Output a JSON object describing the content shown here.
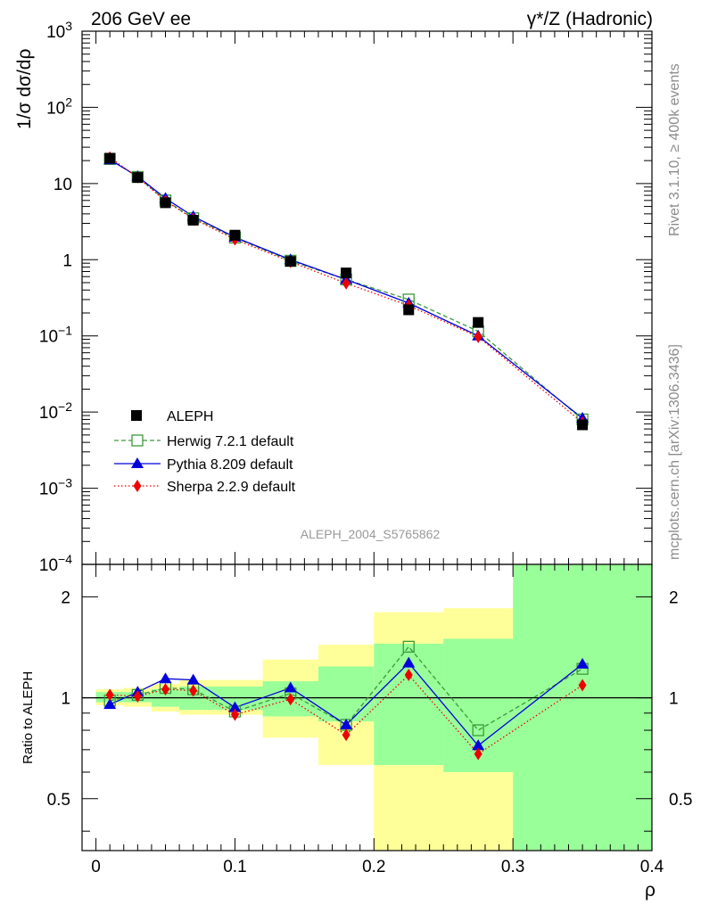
{
  "header": {
    "left": "206 GeV ee",
    "right_main": "γ*/Z (Hadronic)"
  },
  "side_labels": {
    "rivet": "Rivet 3.1.10, ≥ 400k events",
    "mcplots": "mcplots.cern.ch [arXiv:1306.3436]"
  },
  "watermark": "ALEPH_2004_S5765862",
  "chart_data": [
    {
      "type": "line",
      "panel": "main",
      "ylabel": "1/σ  dσ/dρ",
      "xlabel": "",
      "xlim": [
        -0.01,
        0.4
      ],
      "ylim": [
        0.0001,
        1000
      ],
      "yscale": "log",
      "y_tick_labels": [
        "10^-4",
        "10^-3",
        "10^-2",
        "10^-1",
        "1",
        "10",
        "10^2",
        "10^3"
      ],
      "legend_position": "lower-left",
      "x": [
        0.01,
        0.03,
        0.05,
        0.07,
        0.1,
        0.14,
        0.18,
        0.225,
        0.275,
        0.35
      ],
      "series": [
        {
          "name": "ALEPH",
          "color": "#000000",
          "style": "square-filled",
          "values": [
            21.5,
            12.0,
            5.6,
            3.3,
            2.1,
            0.95,
            0.67,
            0.22,
            0.15,
            0.0068
          ]
        },
        {
          "name": "Herwig 7.2.1 default",
          "color": "#3a9a3a",
          "style": "dashed-open-square",
          "values": [
            21.0,
            12.2,
            6.0,
            3.5,
            1.95,
            0.97,
            0.55,
            0.3,
            0.115,
            0.008
          ]
        },
        {
          "name": "Pythia 8.209 default",
          "color": "#0000dd",
          "style": "solid-triangle",
          "values": [
            20.5,
            12.4,
            6.4,
            3.7,
            1.97,
            1.0,
            0.55,
            0.27,
            0.1,
            0.0083
          ]
        },
        {
          "name": "Sherpa 2.2.9 default",
          "color": "#ee0000",
          "style": "dotted-diamond",
          "values": [
            22.0,
            12.1,
            5.9,
            3.45,
            1.85,
            0.94,
            0.49,
            0.25,
            0.097,
            0.0073
          ]
        }
      ]
    },
    {
      "type": "line",
      "panel": "ratio",
      "ylabel": "Ratio to ALEPH",
      "xlabel": "ρ",
      "xlim": [
        -0.01,
        0.4
      ],
      "ylim": [
        0.35,
        2.5
      ],
      "yscale": "log",
      "x_ticks": [
        0,
        0.1,
        0.2,
        0.3,
        0.4
      ],
      "x_tick_labels": [
        "0",
        "0.1",
        "0.2",
        "0.3",
        "0.4"
      ],
      "y_ticks": [
        0.5,
        1,
        2
      ],
      "y_tick_labels": [
        "0.5",
        "1",
        "2"
      ],
      "bins": [
        [
          0.0,
          0.02
        ],
        [
          0.02,
          0.04
        ],
        [
          0.04,
          0.06
        ],
        [
          0.06,
          0.08
        ],
        [
          0.08,
          0.12
        ],
        [
          0.12,
          0.16
        ],
        [
          0.16,
          0.2
        ],
        [
          0.2,
          0.25
        ],
        [
          0.25,
          0.3
        ],
        [
          0.3,
          0.4
        ]
      ],
      "band_green": [
        [
          0.97,
          1.04
        ],
        [
          0.97,
          1.04
        ],
        [
          0.94,
          1.06
        ],
        [
          0.92,
          1.08
        ],
        [
          0.92,
          1.08
        ],
        [
          0.88,
          1.12
        ],
        [
          0.85,
          1.24
        ],
        [
          0.63,
          1.45
        ],
        [
          0.6,
          1.5
        ],
        [
          0.35,
          2.5
        ]
      ],
      "band_yellow": [
        [
          0.95,
          1.06
        ],
        [
          0.94,
          1.07
        ],
        [
          0.91,
          1.1
        ],
        [
          0.89,
          1.13
        ],
        [
          0.89,
          1.13
        ],
        [
          0.76,
          1.3
        ],
        [
          0.63,
          1.44
        ],
        [
          0.35,
          1.8
        ],
        [
          0.35,
          1.85
        ],
        [
          0.35,
          2.5
        ]
      ],
      "x": [
        0.01,
        0.03,
        0.05,
        0.07,
        0.1,
        0.14,
        0.18,
        0.225,
        0.275,
        0.35
      ],
      "series": [
        {
          "name": "Herwig 7.2.1 default",
          "color": "#3a9a3a",
          "style": "dashed-open-square",
          "values": [
            0.98,
            1.02,
            1.07,
            1.06,
            0.91,
            1.03,
            0.83,
            1.42,
            0.8,
            1.22
          ]
        },
        {
          "name": "Pythia 8.209 default",
          "color": "#0000dd",
          "style": "solid-triangle",
          "values": [
            0.955,
            1.04,
            1.14,
            1.13,
            0.935,
            1.07,
            0.83,
            1.27,
            0.72,
            1.26
          ]
        },
        {
          "name": "Sherpa 2.2.9 default",
          "color": "#ee0000",
          "style": "dotted-diamond",
          "values": [
            1.02,
            1.01,
            1.06,
            1.05,
            0.89,
            0.99,
            0.775,
            1.17,
            0.68,
            1.09
          ]
        }
      ]
    }
  ]
}
